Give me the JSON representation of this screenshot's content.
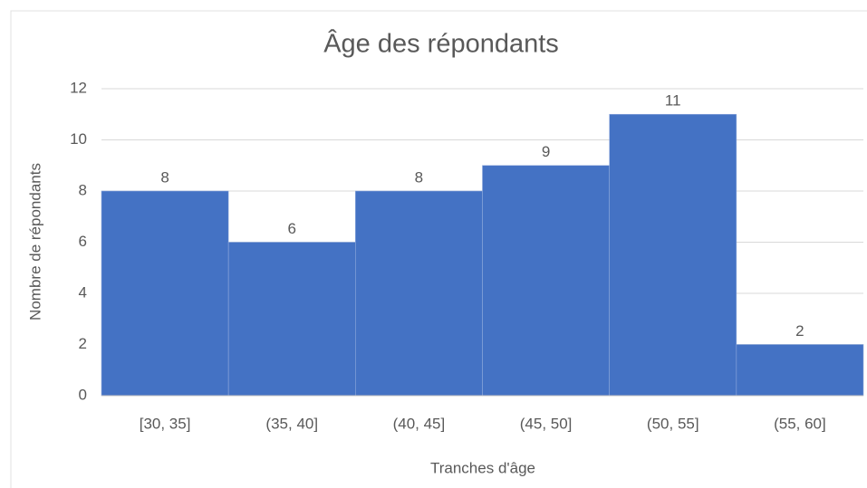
{
  "chart_data": {
    "type": "bar",
    "title": "Âge des répondants",
    "x_label": "Tranches d'âge",
    "y_label": "Nombre de répondants",
    "categories": [
      "[30, 35]",
      "(35, 40]",
      "(40, 45]",
      "(45, 50]",
      "(50, 55]",
      "(55, 60]"
    ],
    "values": [
      8,
      6,
      8,
      9,
      11,
      2
    ],
    "color": "#4472c4",
    "ylim": [
      0,
      12
    ],
    "yticks": [
      0,
      2,
      4,
      6,
      8,
      10,
      12
    ],
    "grid": true
  }
}
